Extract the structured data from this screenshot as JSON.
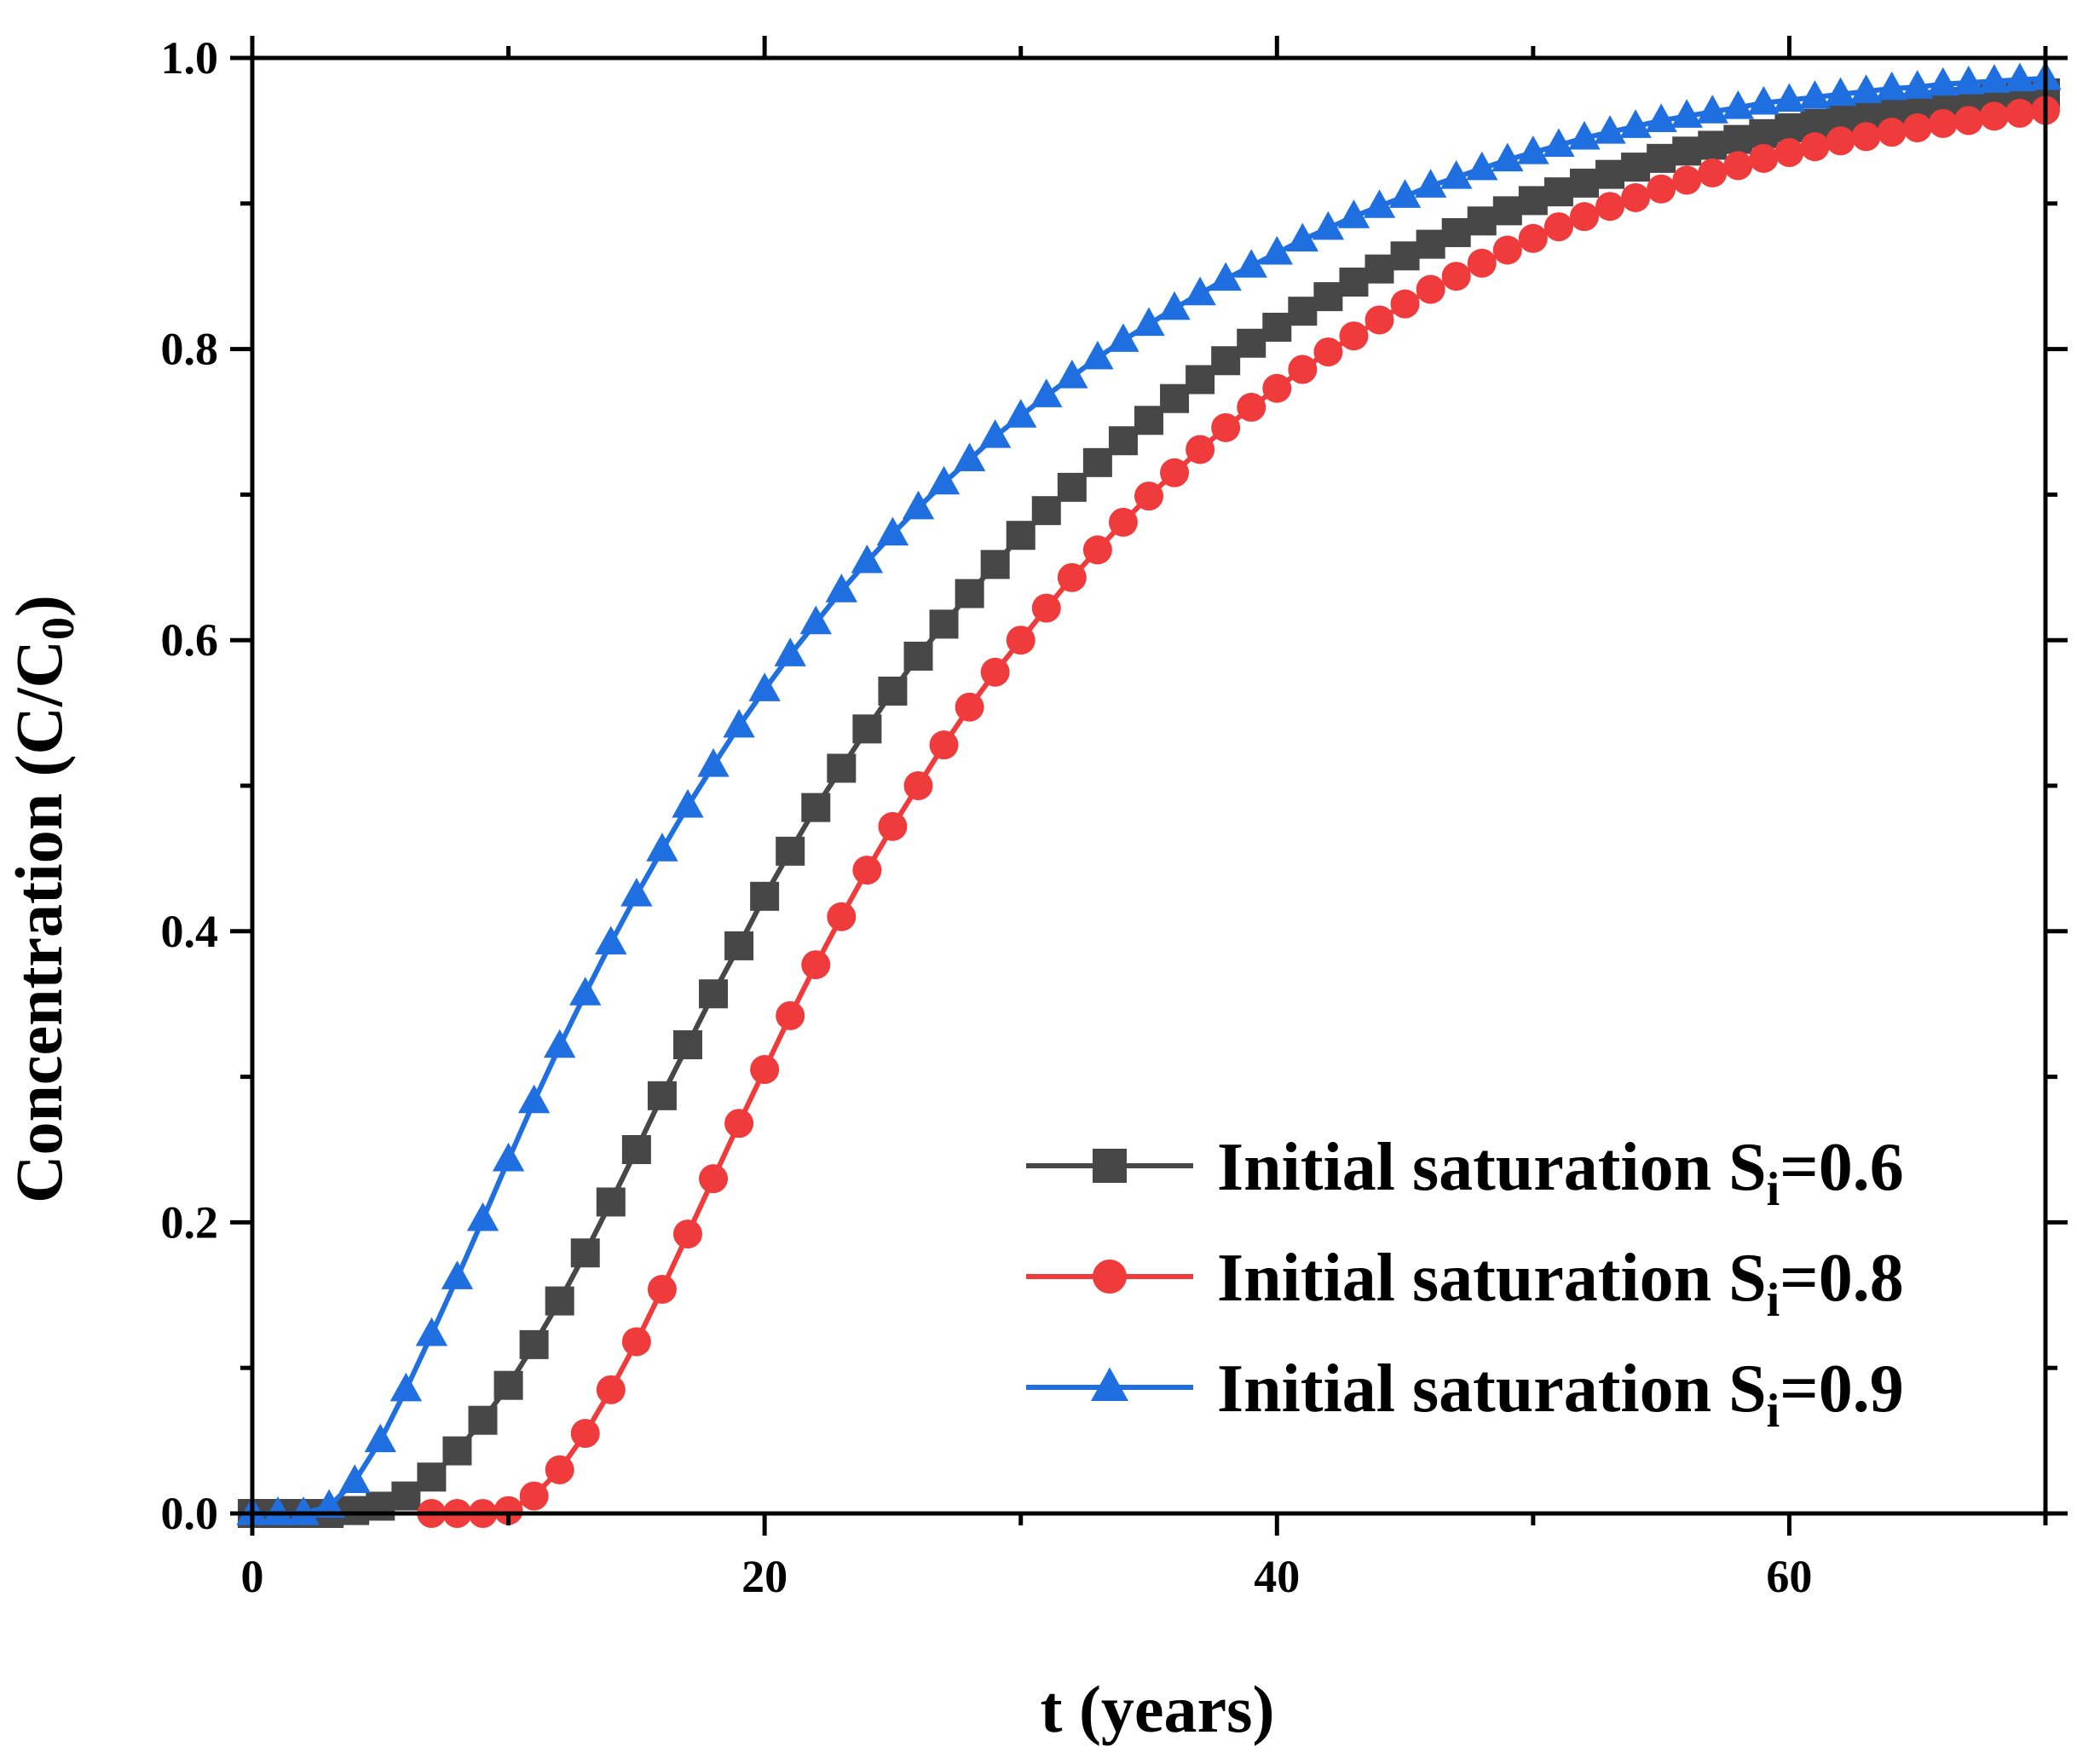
{
  "chart_data": {
    "type": "line",
    "title": "",
    "xlabel": "t (years)",
    "ylabel": {
      "main": "Concentration (C/C",
      "sub": "0",
      "close": ")"
    },
    "xlim": [
      0,
      70
    ],
    "ylim": [
      0,
      1.0
    ],
    "xticks": [
      0,
      20,
      40,
      60
    ],
    "xtick_labels": [
      "0",
      "20",
      "40",
      "60"
    ],
    "xminor": [
      10,
      30,
      50,
      70
    ],
    "yticks": [
      0,
      0.2,
      0.4,
      0.6,
      0.8,
      1.0
    ],
    "ytick_labels": [
      "0.0",
      "0.2",
      "0.4",
      "0.6",
      "0.8",
      "1.0"
    ],
    "yminor": [
      0.1,
      0.3,
      0.5,
      0.7,
      0.9
    ],
    "grid": false,
    "legend_position": "bottom-right",
    "x": [
      0,
      1,
      2,
      3,
      4,
      5,
      6,
      7,
      8,
      9,
      10,
      11,
      12,
      13,
      14,
      15,
      16,
      17,
      18,
      19,
      20,
      21,
      22,
      23,
      24,
      25,
      26,
      27,
      28,
      29,
      30,
      31,
      32,
      33,
      34,
      35,
      36,
      37,
      38,
      39,
      40,
      41,
      42,
      43,
      44,
      45,
      46,
      47,
      48,
      49,
      50,
      51,
      52,
      53,
      54,
      55,
      56,
      57,
      58,
      59,
      60,
      61,
      62,
      63,
      64,
      65,
      66,
      67,
      68,
      69,
      70
    ],
    "series": [
      {
        "name": "Initial saturation S",
        "sub": "i",
        "suffix": "=0.6",
        "color": "#474747",
        "marker": "square",
        "values": [
          0.0,
          0.0,
          0.0,
          0.0,
          0.002,
          0.005,
          0.012,
          0.025,
          0.043,
          0.064,
          0.088,
          0.116,
          0.146,
          0.179,
          0.214,
          0.25,
          0.287,
          0.322,
          0.357,
          0.39,
          0.424,
          0.455,
          0.485,
          0.512,
          0.539,
          0.565,
          0.589,
          0.611,
          0.632,
          0.652,
          0.672,
          0.689,
          0.705,
          0.722,
          0.737,
          0.751,
          0.766,
          0.779,
          0.792,
          0.804,
          0.815,
          0.826,
          0.836,
          0.846,
          0.855,
          0.864,
          0.872,
          0.88,
          0.888,
          0.895,
          0.902,
          0.908,
          0.914,
          0.92,
          0.925,
          0.931,
          0.936,
          0.94,
          0.944,
          0.948,
          0.952,
          0.955,
          0.958,
          0.961,
          0.964,
          0.966,
          0.968,
          0.97,
          0.972,
          0.974,
          0.976
        ]
      },
      {
        "name": "Initial saturation S",
        "sub": "i",
        "suffix": "=0.8",
        "color": "#ef3b3b",
        "marker": "circle",
        "values": [
          null,
          null,
          null,
          null,
          null,
          null,
          null,
          0.0,
          0.0,
          0.0,
          0.002,
          0.012,
          0.03,
          0.055,
          0.085,
          0.118,
          0.154,
          0.192,
          0.23,
          0.268,
          0.305,
          0.342,
          0.377,
          0.41,
          0.442,
          0.472,
          0.5,
          0.528,
          0.554,
          0.578,
          0.6,
          0.622,
          0.643,
          0.662,
          0.681,
          0.699,
          0.715,
          0.731,
          0.746,
          0.76,
          0.773,
          0.786,
          0.798,
          0.809,
          0.82,
          0.831,
          0.841,
          0.85,
          0.859,
          0.868,
          0.876,
          0.884,
          0.891,
          0.898,
          0.904,
          0.91,
          0.916,
          0.921,
          0.926,
          0.931,
          0.935,
          0.939,
          0.943,
          0.946,
          0.949,
          0.952,
          0.955,
          0.957,
          0.96,
          0.962,
          0.964
        ]
      },
      {
        "name": "Initial saturation S",
        "sub": "i",
        "suffix": "=0.9",
        "color": "#1f6fe0",
        "marker": "triangle",
        "values": [
          0.0,
          0.0,
          0.0,
          0.005,
          0.022,
          0.05,
          0.085,
          0.123,
          0.162,
          0.202,
          0.243,
          0.283,
          0.321,
          0.357,
          0.392,
          0.425,
          0.456,
          0.486,
          0.514,
          0.541,
          0.566,
          0.59,
          0.612,
          0.634,
          0.654,
          0.673,
          0.691,
          0.708,
          0.724,
          0.74,
          0.754,
          0.768,
          0.781,
          0.794,
          0.806,
          0.817,
          0.828,
          0.838,
          0.848,
          0.857,
          0.866,
          0.875,
          0.883,
          0.891,
          0.898,
          0.905,
          0.912,
          0.918,
          0.924,
          0.93,
          0.935,
          0.94,
          0.945,
          0.949,
          0.953,
          0.957,
          0.96,
          0.963,
          0.966,
          0.969,
          0.971,
          0.973,
          0.975,
          0.977,
          0.979,
          0.98,
          0.982,
          0.983,
          0.984,
          0.985,
          0.986
        ]
      }
    ]
  }
}
